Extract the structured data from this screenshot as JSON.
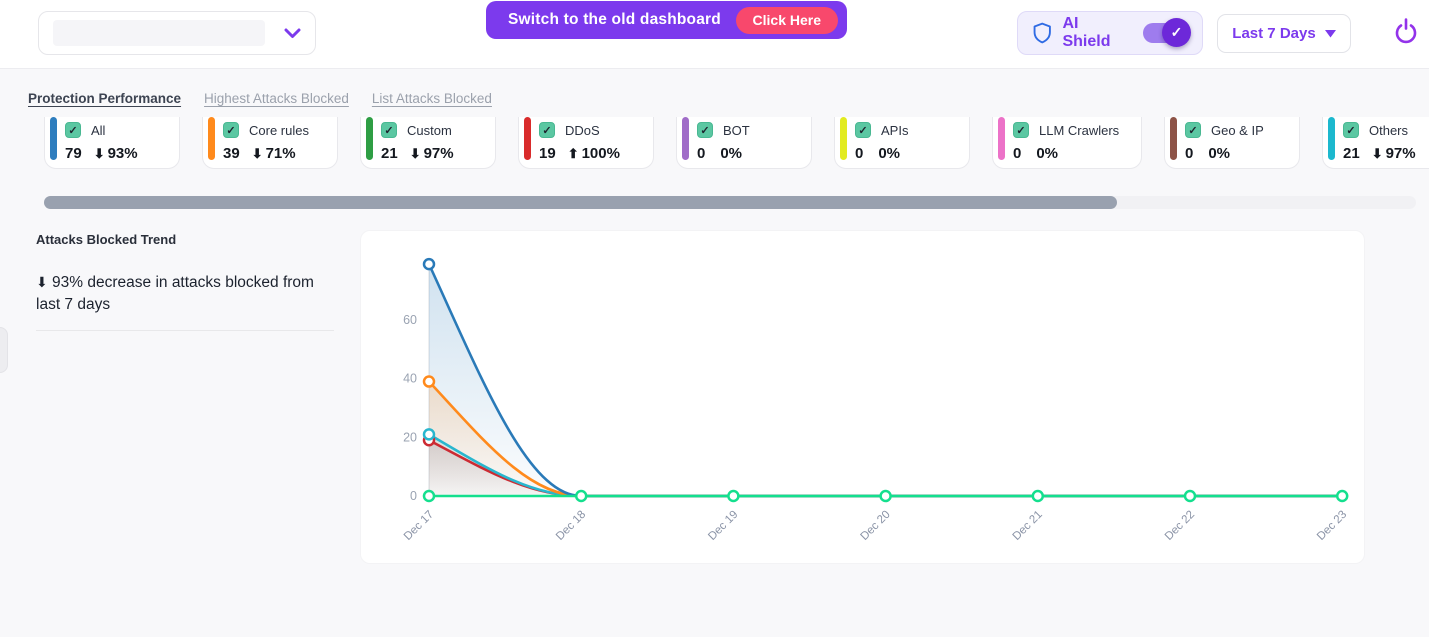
{
  "icons": {
    "check": "✓"
  },
  "header": {
    "banner": {
      "text": "Switch to the old dashboard",
      "button_label": "Click Here",
      "bg_color": "#7C3AED",
      "button_color": "#F8486C"
    },
    "ai_shield": {
      "label": "AI Shield",
      "state": "on",
      "accent_color": "#7C3AED"
    },
    "date_range_label": "Last 7 Days"
  },
  "tabs": [
    {
      "label": "Protection Performance",
      "active": true
    },
    {
      "label": "Highest Attacks Blocked",
      "active": false
    },
    {
      "label": "List Attacks Blocked",
      "active": false
    }
  ],
  "cards": [
    {
      "label": "All",
      "value": "79",
      "arrow": "⬇",
      "percent": "93%",
      "color": "#2E7DBE"
    },
    {
      "label": "Core rules",
      "value": "39",
      "arrow": "⬇",
      "percent": "71%",
      "color": "#FF8A1C"
    },
    {
      "label": "Custom",
      "value": "21",
      "arrow": "⬇",
      "percent": "97%",
      "color": "#2E9E44"
    },
    {
      "label": "DDoS",
      "value": "19",
      "arrow": "⬆",
      "percent": "100%",
      "color": "#D92B2B"
    },
    {
      "label": "BOT",
      "value": "0",
      "arrow": "",
      "percent": "0%",
      "color": "#A06CC8"
    },
    {
      "label": "APIs",
      "value": "0",
      "arrow": "",
      "percent": "0%",
      "color": "#E2EB21"
    },
    {
      "label": "LLM Crawlers",
      "value": "0",
      "arrow": "",
      "percent": "0%",
      "color": "#EC72C8"
    },
    {
      "label": "Geo & IP",
      "value": "0",
      "arrow": "",
      "percent": "0%",
      "color": "#8D5347"
    },
    {
      "label": "Others",
      "value": "21",
      "arrow": "⬇",
      "percent": "97%",
      "color": "#1CB8CE"
    }
  ],
  "trend_panel": {
    "title": "Attacks Blocked Trend",
    "arrow": "⬇",
    "description": "93% decrease in attacks blocked from last 7 days"
  },
  "chart_data": {
    "type": "line",
    "title": "Attacks Blocked Trend",
    "x": [
      "Dec 17",
      "Dec 18",
      "Dec 19",
      "Dec 20",
      "Dec 21",
      "Dec 22",
      "Dec 23"
    ],
    "series": [
      {
        "name": "blue",
        "color": "#2A7AB8",
        "values": [
          79,
          0,
          0,
          0,
          0,
          0,
          0
        ],
        "fill_opacity": 0.22,
        "markers": "nonzero"
      },
      {
        "name": "orange",
        "color": "#FF8A1C",
        "values": [
          39,
          0,
          0,
          0,
          0,
          0,
          0
        ],
        "fill_opacity": 0.2,
        "markers": "nonzero"
      },
      {
        "name": "red",
        "color": "#CC2B33",
        "values": [
          19,
          0,
          0,
          0,
          0,
          0,
          0
        ],
        "fill_opacity": 0.14,
        "markers": "nonzero"
      },
      {
        "name": "cyan",
        "color": "#29B6CE",
        "values": [
          21,
          0,
          0,
          0,
          0,
          0,
          0
        ],
        "fill_opacity": 0.14,
        "markers": "nonzero"
      },
      {
        "name": "green",
        "color": "#14DF8E",
        "values": [
          0,
          0,
          0,
          0,
          0,
          0,
          0
        ],
        "fill_opacity": 0,
        "markers": "all"
      }
    ],
    "yticks": [
      0,
      20,
      40,
      60
    ],
    "ylim": [
      0,
      80
    ],
    "grid": false,
    "legend": "none"
  }
}
